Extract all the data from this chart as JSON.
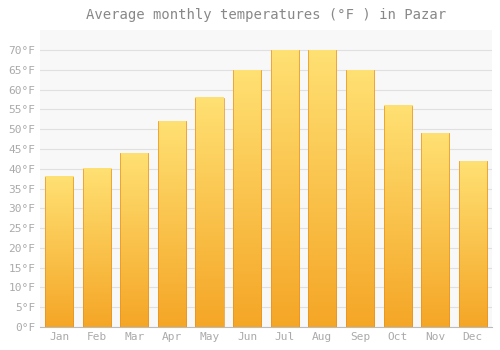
{
  "title": "Average monthly temperatures (°F ) in Pazar",
  "months": [
    "Jan",
    "Feb",
    "Mar",
    "Apr",
    "May",
    "Jun",
    "Jul",
    "Aug",
    "Sep",
    "Oct",
    "Nov",
    "Dec"
  ],
  "values": [
    38,
    40,
    44,
    52,
    58,
    65,
    70,
    70,
    65,
    56,
    49,
    42
  ],
  "bar_color": "#FFA500",
  "bar_color_light": "#FFD080",
  "ylim": [
    0,
    75
  ],
  "yticks": [
    0,
    5,
    10,
    15,
    20,
    25,
    30,
    35,
    40,
    45,
    50,
    55,
    60,
    65,
    70
  ],
  "ytick_labels": [
    "0°F",
    "5°F",
    "10°F",
    "15°F",
    "20°F",
    "25°F",
    "30°F",
    "35°F",
    "40°F",
    "45°F",
    "50°F",
    "55°F",
    "60°F",
    "65°F",
    "70°F"
  ],
  "background_color": "#FFFFFF",
  "plot_bg_color": "#F8F8F8",
  "grid_color": "#E0E0E0",
  "title_fontsize": 10,
  "tick_fontsize": 8,
  "tick_color": "#AAAAAA",
  "title_color": "#888888"
}
